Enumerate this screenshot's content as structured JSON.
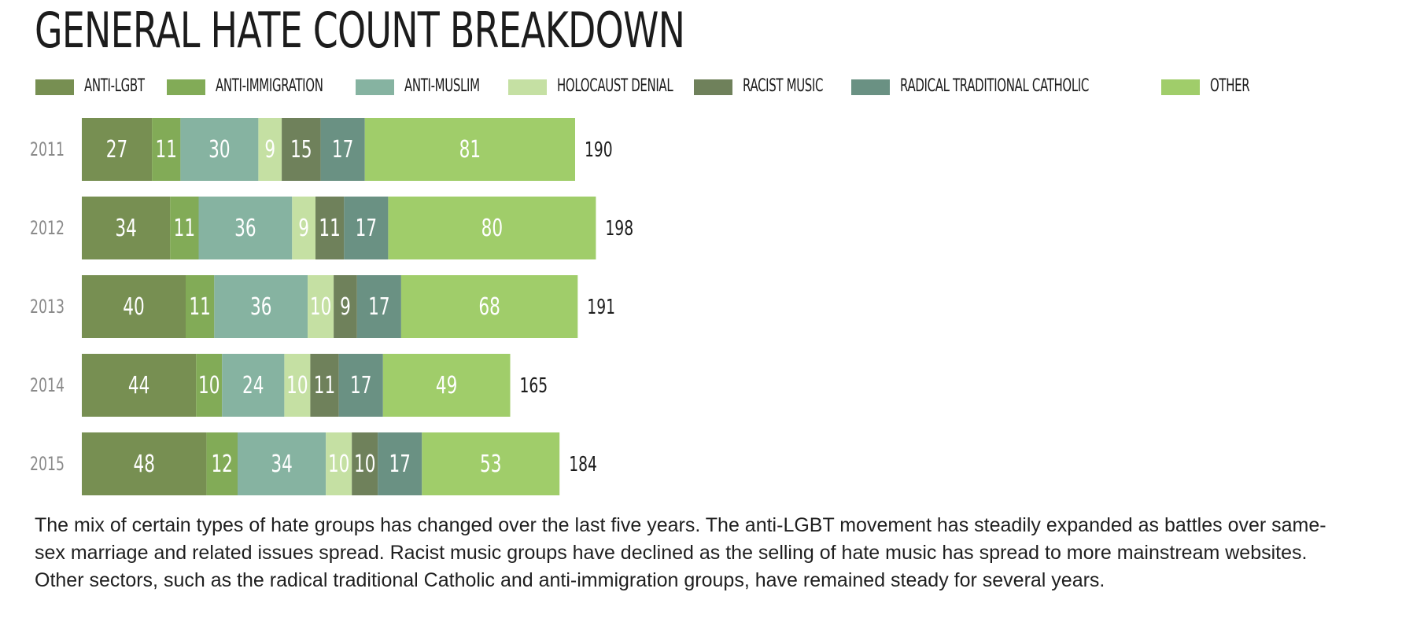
{
  "title": "GENERAL HATE COUNT BREAKDOWN",
  "caption": "The mix of certain types of hate groups has changed over the last five years. The anti-LGBT movement has steadily expanded as battles over same-sex marriage and related issues spread. Racist music groups have declined as the selling of hate music has spread to more mainstream websites. Other sectors, such as the radical traditional Catholic and anti-immigration groups, have remained steady for several years.",
  "chart_data": {
    "type": "bar",
    "orientation": "horizontal",
    "stacked": true,
    "title": "GENERAL HATE COUNT BREAKDOWN",
    "categories": [
      "2011",
      "2012",
      "2013",
      "2014",
      "2015"
    ],
    "series": [
      {
        "name": "ANTI-LGBT",
        "color": "#778f52",
        "values": [
          27,
          34,
          40,
          44,
          48
        ]
      },
      {
        "name": "ANTI-IMMIGRATION",
        "color": "#82ab57",
        "values": [
          11,
          11,
          11,
          10,
          12
        ]
      },
      {
        "name": "ANTI-MUSLIM",
        "color": "#86b3a1",
        "values": [
          30,
          36,
          36,
          24,
          34
        ]
      },
      {
        "name": "HOLOCAUST DENIAL",
        "color": "#c5e0a3",
        "values": [
          9,
          9,
          10,
          10,
          10
        ]
      },
      {
        "name": "RACIST MUSIC",
        "color": "#6f815b",
        "values": [
          15,
          11,
          9,
          11,
          10
        ]
      },
      {
        "name": "RADICAL TRADITIONAL CATHOLIC",
        "color": "#6a9183",
        "values": [
          17,
          17,
          17,
          17,
          17
        ]
      },
      {
        "name": "OTHER",
        "color": "#a0cd6a",
        "values": [
          81,
          80,
          68,
          49,
          53
        ]
      }
    ],
    "totals": [
      190,
      198,
      191,
      165,
      184
    ],
    "legend": "top-left",
    "grid": false
  }
}
